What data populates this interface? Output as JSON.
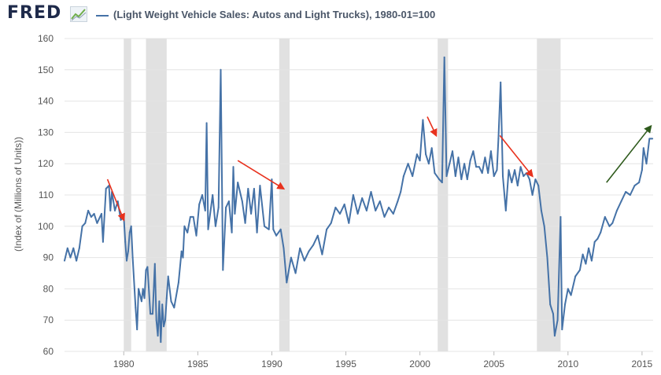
{
  "header": {
    "logo": "FRED",
    "logo_icon": "chart-line-icon",
    "legend_label": "(Light Weight Vehicle Sales: Autos and Light Trucks), 1980-01=100"
  },
  "chart_data": {
    "type": "line",
    "title": "(Light Weight Vehicle Sales: Autos and Light Trucks), 1980-01=100",
    "xlabel": "",
    "ylabel": "(Index of (Millions of Units))",
    "xlim": [
      1976.0,
      2015.75
    ],
    "ylim": [
      60,
      160
    ],
    "x_ticks": [
      1980,
      1985,
      1990,
      1995,
      2000,
      2005,
      2010,
      2015
    ],
    "y_ticks": [
      60,
      70,
      80,
      90,
      100,
      110,
      120,
      130,
      140,
      150,
      160
    ],
    "grid": "horizontal",
    "line_color": "#4572a7",
    "recessions": [
      [
        1980.0,
        1980.5
      ],
      [
        1981.5,
        1982.9
      ],
      [
        1990.5,
        1991.2
      ],
      [
        2001.2,
        2001.9
      ],
      [
        2007.9,
        2009.5
      ]
    ],
    "series": [
      {
        "name": "(Light Weight Vehicle Sales: Autos and Light Trucks), 1980-01=100",
        "points": [
          [
            1976.0,
            89
          ],
          [
            1976.2,
            93
          ],
          [
            1976.4,
            90
          ],
          [
            1976.6,
            93
          ],
          [
            1976.8,
            89
          ],
          [
            1977.0,
            93
          ],
          [
            1977.2,
            100
          ],
          [
            1977.4,
            101
          ],
          [
            1977.6,
            105
          ],
          [
            1977.8,
            103
          ],
          [
            1978.0,
            104
          ],
          [
            1978.2,
            101
          ],
          [
            1978.5,
            104
          ],
          [
            1978.6,
            95
          ],
          [
            1978.8,
            112
          ],
          [
            1979.0,
            113
          ],
          [
            1979.1,
            105
          ],
          [
            1979.2,
            111
          ],
          [
            1979.4,
            105
          ],
          [
            1979.6,
            108
          ],
          [
            1979.8,
            102
          ],
          [
            1980.0,
            103
          ],
          [
            1980.1,
            95
          ],
          [
            1980.2,
            89
          ],
          [
            1980.3,
            92
          ],
          [
            1980.4,
            98
          ],
          [
            1980.5,
            100
          ],
          [
            1980.6,
            90
          ],
          [
            1980.8,
            74
          ],
          [
            1980.9,
            67
          ],
          [
            1981.0,
            80
          ],
          [
            1981.2,
            76
          ],
          [
            1981.3,
            80
          ],
          [
            1981.4,
            77
          ],
          [
            1981.5,
            86
          ],
          [
            1981.6,
            87
          ],
          [
            1981.8,
            72
          ],
          [
            1981.95,
            72
          ],
          [
            1982.1,
            88
          ],
          [
            1982.2,
            70
          ],
          [
            1982.3,
            65
          ],
          [
            1982.4,
            76
          ],
          [
            1982.5,
            63
          ],
          [
            1982.6,
            75
          ],
          [
            1982.7,
            68
          ],
          [
            1982.8,
            70
          ],
          [
            1982.9,
            77
          ],
          [
            1983.0,
            84
          ],
          [
            1983.2,
            76
          ],
          [
            1983.4,
            74
          ],
          [
            1983.7,
            82
          ],
          [
            1983.9,
            92
          ],
          [
            1984.0,
            90
          ],
          [
            1984.1,
            100
          ],
          [
            1984.3,
            98
          ],
          [
            1984.5,
            103
          ],
          [
            1984.7,
            103
          ],
          [
            1984.9,
            97
          ],
          [
            1985.1,
            107
          ],
          [
            1985.3,
            110
          ],
          [
            1985.5,
            105
          ],
          [
            1985.6,
            133
          ],
          [
            1985.7,
            99
          ],
          [
            1986.0,
            110
          ],
          [
            1986.2,
            100
          ],
          [
            1986.4,
            106
          ],
          [
            1986.55,
            150
          ],
          [
            1986.7,
            86
          ],
          [
            1986.9,
            106
          ],
          [
            1987.1,
            108
          ],
          [
            1987.3,
            98
          ],
          [
            1987.4,
            119
          ],
          [
            1987.5,
            104
          ],
          [
            1987.7,
            114
          ],
          [
            1988.0,
            108
          ],
          [
            1988.2,
            101
          ],
          [
            1988.4,
            112
          ],
          [
            1988.6,
            104
          ],
          [
            1988.8,
            112
          ],
          [
            1989.0,
            98
          ],
          [
            1989.2,
            113
          ],
          [
            1989.5,
            100
          ],
          [
            1989.8,
            99
          ],
          [
            1990.0,
            115
          ],
          [
            1990.1,
            99
          ],
          [
            1990.3,
            97
          ],
          [
            1990.6,
            99
          ],
          [
            1990.8,
            93
          ],
          [
            1991.0,
            82
          ],
          [
            1991.3,
            90
          ],
          [
            1991.6,
            85
          ],
          [
            1991.9,
            93
          ],
          [
            1992.2,
            89
          ],
          [
            1992.5,
            92
          ],
          [
            1992.8,
            94
          ],
          [
            1993.1,
            97
          ],
          [
            1993.4,
            91
          ],
          [
            1993.7,
            99
          ],
          [
            1994.0,
            101
          ],
          [
            1994.3,
            106
          ],
          [
            1994.6,
            104
          ],
          [
            1994.9,
            107
          ],
          [
            1995.2,
            101
          ],
          [
            1995.5,
            110
          ],
          [
            1995.8,
            104
          ],
          [
            1996.1,
            109
          ],
          [
            1996.4,
            105
          ],
          [
            1996.7,
            111
          ],
          [
            1997.0,
            105
          ],
          [
            1997.3,
            108
          ],
          [
            1997.6,
            103
          ],
          [
            1997.9,
            106
          ],
          [
            1998.2,
            104
          ],
          [
            1998.5,
            108
          ],
          [
            1998.7,
            111
          ],
          [
            1998.9,
            116
          ],
          [
            1999.2,
            120
          ],
          [
            1999.5,
            116
          ],
          [
            1999.8,
            123
          ],
          [
            2000.0,
            121
          ],
          [
            2000.2,
            134
          ],
          [
            2000.4,
            123
          ],
          [
            2000.6,
            120
          ],
          [
            2000.8,
            125
          ],
          [
            2001.0,
            117
          ],
          [
            2001.3,
            115
          ],
          [
            2001.5,
            114
          ],
          [
            2001.65,
            154
          ],
          [
            2001.8,
            116
          ],
          [
            2002.0,
            120
          ],
          [
            2002.2,
            124
          ],
          [
            2002.4,
            116
          ],
          [
            2002.6,
            122
          ],
          [
            2002.8,
            115
          ],
          [
            2003.0,
            120
          ],
          [
            2003.2,
            115
          ],
          [
            2003.4,
            121
          ],
          [
            2003.6,
            124
          ],
          [
            2003.8,
            119
          ],
          [
            2004.0,
            119
          ],
          [
            2004.2,
            117
          ],
          [
            2004.4,
            122
          ],
          [
            2004.6,
            117
          ],
          [
            2004.8,
            124
          ],
          [
            2005.0,
            116
          ],
          [
            2005.2,
            118
          ],
          [
            2005.3,
            128
          ],
          [
            2005.45,
            146
          ],
          [
            2005.6,
            116
          ],
          [
            2005.8,
            105
          ],
          [
            2006.0,
            118
          ],
          [
            2006.2,
            114
          ],
          [
            2006.4,
            118
          ],
          [
            2006.6,
            113
          ],
          [
            2006.8,
            119
          ],
          [
            2007.0,
            116
          ],
          [
            2007.2,
            117
          ],
          [
            2007.4,
            115
          ],
          [
            2007.6,
            110
          ],
          [
            2007.8,
            115
          ],
          [
            2008.0,
            113
          ],
          [
            2008.2,
            105
          ],
          [
            2008.4,
            100
          ],
          [
            2008.6,
            90
          ],
          [
            2008.8,
            75
          ],
          [
            2009.0,
            72
          ],
          [
            2009.1,
            65
          ],
          [
            2009.3,
            70
          ],
          [
            2009.5,
            103
          ],
          [
            2009.6,
            67
          ],
          [
            2009.8,
            75
          ],
          [
            2010.0,
            80
          ],
          [
            2010.2,
            78
          ],
          [
            2010.5,
            84
          ],
          [
            2010.8,
            86
          ],
          [
            2011.0,
            91
          ],
          [
            2011.2,
            88
          ],
          [
            2011.4,
            93
          ],
          [
            2011.6,
            89
          ],
          [
            2011.8,
            95
          ],
          [
            2012.0,
            96
          ],
          [
            2012.2,
            98
          ],
          [
            2012.5,
            103
          ],
          [
            2012.8,
            100
          ],
          [
            2013.0,
            101
          ],
          [
            2013.3,
            105
          ],
          [
            2013.6,
            108
          ],
          [
            2013.9,
            111
          ],
          [
            2014.2,
            110
          ],
          [
            2014.5,
            113
          ],
          [
            2014.8,
            114
          ],
          [
            2015.0,
            118
          ],
          [
            2015.1,
            125
          ],
          [
            2015.3,
            120
          ],
          [
            2015.5,
            128
          ],
          [
            2015.7,
            128
          ]
        ]
      }
    ],
    "annotations": [
      {
        "type": "arrow",
        "color": "#e8321e",
        "from": [
          1978.9,
          115
        ],
        "to": [
          1980.0,
          102
        ]
      },
      {
        "type": "arrow",
        "color": "#e8321e",
        "from": [
          1987.7,
          121
        ],
        "to": [
          1990.8,
          112
        ]
      },
      {
        "type": "arrow",
        "color": "#e8321e",
        "from": [
          2000.5,
          135
        ],
        "to": [
          2001.1,
          129
        ]
      },
      {
        "type": "arrow",
        "color": "#e8321e",
        "from": [
          2005.4,
          129
        ],
        "to": [
          2007.6,
          116
        ]
      },
      {
        "type": "arrow",
        "color": "#2e5a1c",
        "from": [
          2012.6,
          114
        ],
        "to": [
          2015.6,
          132
        ]
      }
    ]
  }
}
